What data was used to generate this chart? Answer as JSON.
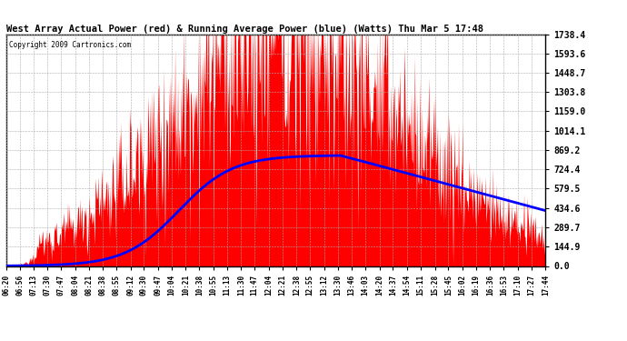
{
  "title": "West Array Actual Power (red) & Running Average Power (blue) (Watts) Thu Mar 5 17:48",
  "copyright": "Copyright 2009 Cartronics.com",
  "bg_color": "#ffffff",
  "plot_bg_color": "#ffffff",
  "grid_color": "#aaaaaa",
  "y_ticks": [
    0.0,
    144.9,
    289.7,
    434.6,
    579.5,
    724.4,
    869.2,
    1014.1,
    1159.0,
    1303.8,
    1448.7,
    1593.6,
    1738.4
  ],
  "y_max": 1738.4,
  "x_labels": [
    "06:20",
    "06:56",
    "07:13",
    "07:30",
    "07:47",
    "08:04",
    "08:21",
    "08:38",
    "08:55",
    "09:12",
    "09:30",
    "09:47",
    "10:04",
    "10:21",
    "10:38",
    "10:55",
    "11:13",
    "11:30",
    "11:47",
    "12:04",
    "12:21",
    "12:38",
    "12:55",
    "13:12",
    "13:30",
    "13:46",
    "14:03",
    "14:20",
    "14:37",
    "14:54",
    "15:11",
    "15:28",
    "15:45",
    "16:02",
    "16:19",
    "16:36",
    "16:53",
    "17:10",
    "17:27",
    "17:44"
  ],
  "bar_color": "#ff0000",
  "line_color": "#0000ff",
  "line_width": 2.0
}
